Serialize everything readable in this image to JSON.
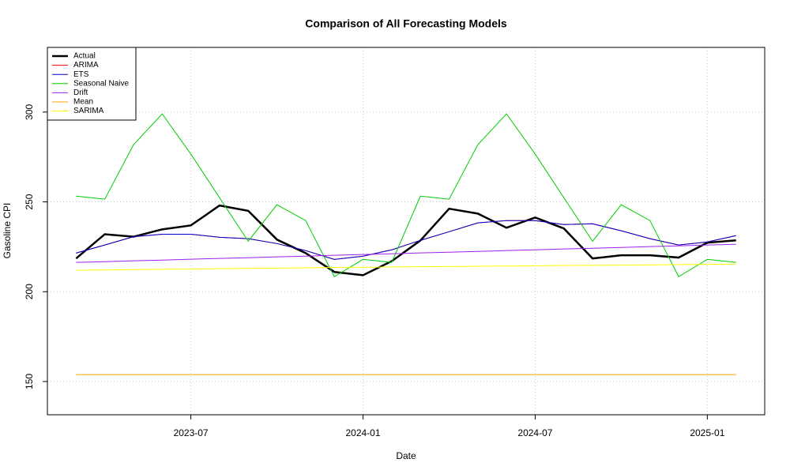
{
  "chart_data": {
    "type": "line",
    "title": "Comparison of All Forecasting Models",
    "xlabel": "Date",
    "ylabel": "Gasoline CPI",
    "x": [
      "2023-03",
      "2023-04",
      "2023-05",
      "2023-06",
      "2023-07",
      "2023-08",
      "2023-09",
      "2023-10",
      "2023-11",
      "2023-12",
      "2024-01",
      "2024-02",
      "2024-03",
      "2024-04",
      "2024-05",
      "2024-06",
      "2024-07",
      "2024-08",
      "2024-09",
      "2024-10",
      "2024-11",
      "2024-12",
      "2025-01",
      "2025-02"
    ],
    "xlim": [
      "2023-02",
      "2025-03"
    ],
    "xticks": [
      "2023-07",
      "2024-01",
      "2024-07",
      "2025-01"
    ],
    "ylim": [
      131.5,
      336
    ],
    "yticks": [
      150,
      200,
      250,
      300
    ],
    "grid": true,
    "legend": "top-left",
    "series": [
      {
        "name": "Actual",
        "color": "#000000",
        "values": [
          218.5,
          232,
          230.6,
          234.7,
          236.9,
          248,
          245,
          229,
          221.5,
          211,
          209.2,
          217,
          228.5,
          246.2,
          243.5,
          235.6,
          241.3,
          235.2,
          218.5,
          220.3,
          220.3,
          219,
          227.3,
          228.6
        ]
      },
      {
        "name": "ARIMA",
        "color": "#ff0000",
        "values": [
          221.5,
          226,
          230.6,
          232,
          232,
          230.3,
          229.5,
          226.8,
          222.9,
          218,
          219.8,
          223.3,
          228.6,
          233.4,
          238.3,
          239.6,
          239.6,
          237.4,
          237.8,
          233.9,
          229.5,
          226,
          227.7,
          231.2
        ]
      },
      {
        "name": "ETS",
        "color": "#0000cd",
        "values": [
          221.5,
          226,
          230.6,
          232,
          232,
          230.3,
          229.5,
          226.8,
          222.9,
          218,
          219.8,
          223.3,
          228.6,
          233.4,
          238.3,
          239.6,
          239.6,
          237.4,
          237.8,
          233.9,
          229.5,
          226,
          227.7,
          231.2
        ]
      },
      {
        "name": "Seasonal Naive",
        "color": "#00cd00",
        "values": [
          253.2,
          251.5,
          281.8,
          299,
          276.6,
          252.3,
          228.1,
          248.4,
          239.6,
          208.4,
          218,
          216.3,
          253.2,
          251.5,
          281.8,
          299,
          276.6,
          252.3,
          228.1,
          248.4,
          239.6,
          208.4,
          218,
          216.3
        ]
      },
      {
        "name": "Drift",
        "color": "#a020f0",
        "values": [
          216.3,
          216.7,
          217.2,
          217.6,
          218.1,
          218.5,
          218.9,
          219.4,
          219.8,
          220.3,
          220.7,
          221.1,
          221.6,
          222,
          222.4,
          222.9,
          223.3,
          223.8,
          224.2,
          224.6,
          225.1,
          225.5,
          226,
          226.4
        ]
      },
      {
        "name": "Mean",
        "color": "#ffa500",
        "values": [
          153.8,
          153.8,
          153.8,
          153.8,
          153.8,
          153.8,
          153.8,
          153.8,
          153.8,
          153.8,
          153.8,
          153.8,
          153.8,
          153.8,
          153.8,
          153.8,
          153.8,
          153.8,
          153.8,
          153.8,
          153.8,
          153.8,
          153.8,
          153.8
        ]
      },
      {
        "name": "SARIMA",
        "color": "#ffff00",
        "values": [
          211.9,
          212.1,
          212.3,
          212.5,
          212.6,
          212.8,
          213,
          213.1,
          213.3,
          213.5,
          213.6,
          213.8,
          213.9,
          214,
          214.2,
          214.3,
          214.4,
          214.6,
          214.7,
          214.8,
          214.9,
          215.1,
          215.2,
          215.4
        ]
      }
    ]
  }
}
